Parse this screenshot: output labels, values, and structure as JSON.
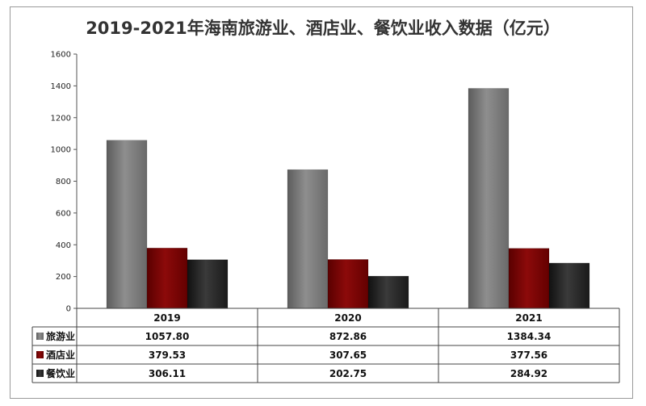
{
  "chart_data": {
    "type": "bar",
    "title": "2019-2021年海南旅游业、酒店业、餐饮业收入数据（亿元）",
    "categories": [
      "2019",
      "2020",
      "2021"
    ],
    "series": [
      {
        "name": "旅游业",
        "values": [
          1057.8,
          872.86,
          1384.34
        ],
        "color": "#7a7a7a",
        "labels": [
          "1057.80",
          "872.86",
          "1384.34"
        ]
      },
      {
        "name": "酒店业",
        "values": [
          379.53,
          307.65,
          377.56
        ],
        "color": "#7a0000",
        "labels": [
          "379.53",
          "307.65",
          "377.56"
        ]
      },
      {
        "name": "餐饮业",
        "values": [
          306.11,
          202.75,
          284.92
        ],
        "color": "#1e1e1e",
        "labels": [
          "306.11",
          "202.75",
          "284.92"
        ]
      }
    ],
    "yticks": [
      "0",
      "200",
      "400",
      "600",
      "800",
      "1000",
      "1200",
      "1400",
      "1600"
    ],
    "ylim": [
      0,
      1600
    ],
    "grid": false,
    "legend": "data-table"
  }
}
